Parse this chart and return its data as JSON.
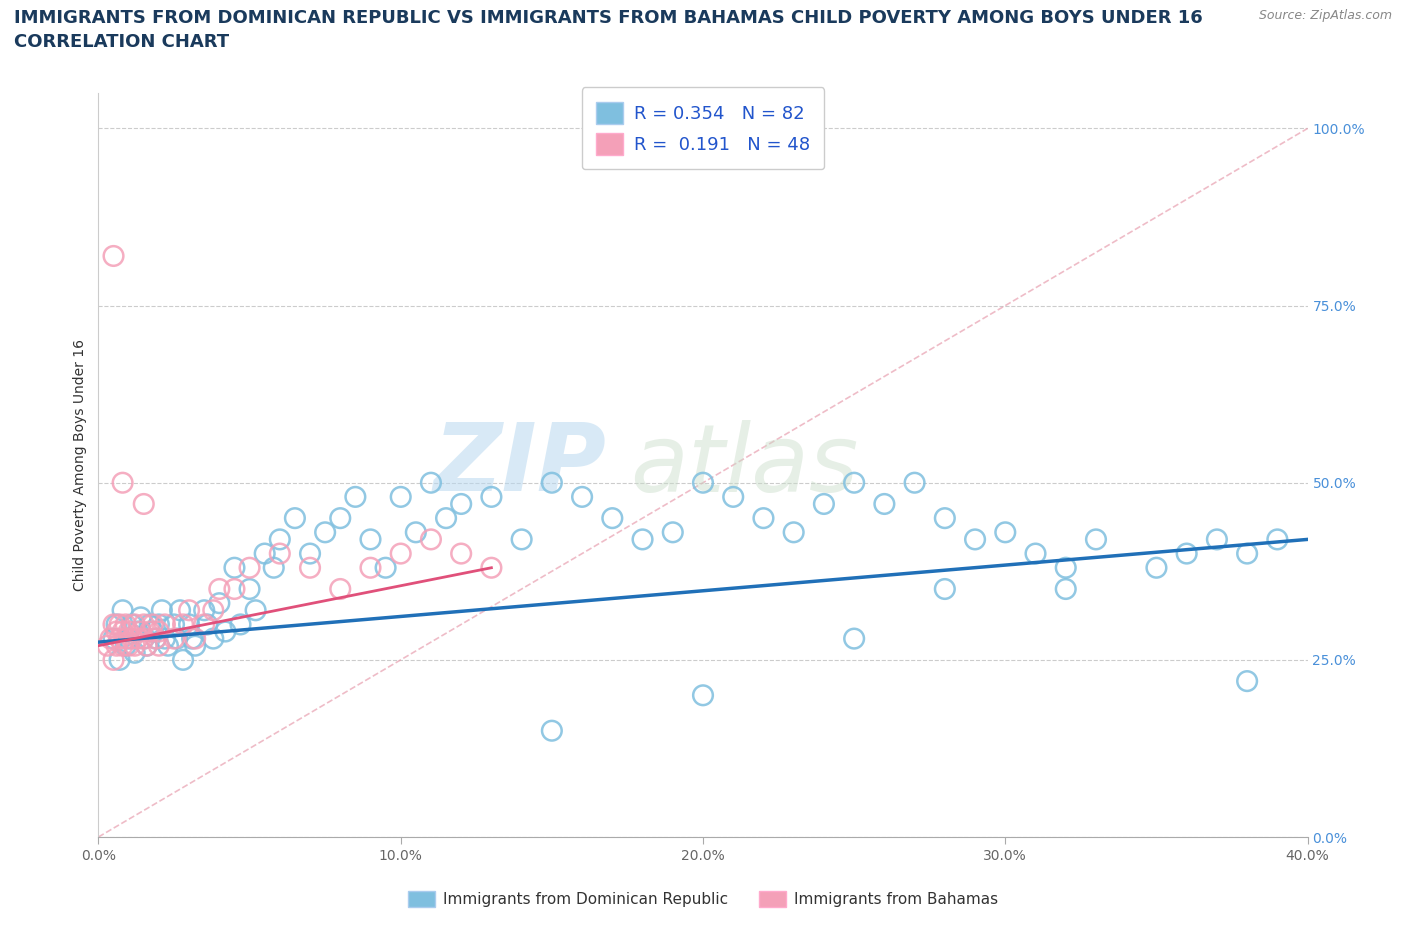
{
  "title_line1": "IMMIGRANTS FROM DOMINICAN REPUBLIC VS IMMIGRANTS FROM BAHAMAS CHILD POVERTY AMONG BOYS UNDER 16",
  "title_line2": "CORRELATION CHART",
  "source_text": "Source: ZipAtlas.com",
  "ylabel": "Child Poverty Among Boys Under 16",
  "xlim": [
    0.0,
    0.4
  ],
  "ylim": [
    0.0,
    1.05
  ],
  "xtick_labels": [
    "0.0%",
    "10.0%",
    "20.0%",
    "30.0%",
    "40.0%"
  ],
  "xtick_vals": [
    0.0,
    0.1,
    0.2,
    0.3,
    0.4
  ],
  "ytick_labels": [
    "0.0%",
    "25.0%",
    "50.0%",
    "75.0%",
    "100.0%"
  ],
  "ytick_vals": [
    0.0,
    0.25,
    0.5,
    0.75,
    1.0
  ],
  "color_blue": "#7fbfdf",
  "color_pink": "#f4a0b8",
  "R_blue": 0.354,
  "N_blue": 82,
  "R_pink": 0.191,
  "N_pink": 48,
  "legend_label_blue": "Immigrants from Dominican Republic",
  "legend_label_pink": "Immigrants from Bahamas",
  "watermark_zip": "ZIP",
  "watermark_atlas": "atlas",
  "title_fontsize": 13,
  "subtitle_fontsize": 13,
  "axis_label_fontsize": 10,
  "tick_fontsize": 10,
  "blue_x": [
    0.005,
    0.006,
    0.007,
    0.008,
    0.009,
    0.01,
    0.011,
    0.012,
    0.013,
    0.014,
    0.015,
    0.016,
    0.017,
    0.018,
    0.019,
    0.02,
    0.021,
    0.022,
    0.023,
    0.025,
    0.026,
    0.027,
    0.028,
    0.03,
    0.031,
    0.032,
    0.035,
    0.036,
    0.038,
    0.04,
    0.042,
    0.045,
    0.047,
    0.05,
    0.052,
    0.055,
    0.058,
    0.06,
    0.065,
    0.07,
    0.075,
    0.08,
    0.085,
    0.09,
    0.095,
    0.1,
    0.105,
    0.11,
    0.115,
    0.12,
    0.13,
    0.14,
    0.15,
    0.16,
    0.17,
    0.18,
    0.19,
    0.2,
    0.21,
    0.22,
    0.23,
    0.24,
    0.25,
    0.26,
    0.27,
    0.28,
    0.29,
    0.3,
    0.31,
    0.32,
    0.33,
    0.35,
    0.36,
    0.37,
    0.38,
    0.39,
    0.28,
    0.32,
    0.25,
    0.38,
    0.2,
    0.15
  ],
  "blue_y": [
    0.28,
    0.3,
    0.25,
    0.32,
    0.27,
    0.28,
    0.3,
    0.26,
    0.29,
    0.31,
    0.28,
    0.27,
    0.3,
    0.29,
    0.28,
    0.3,
    0.32,
    0.28,
    0.27,
    0.3,
    0.28,
    0.32,
    0.25,
    0.3,
    0.28,
    0.27,
    0.32,
    0.3,
    0.28,
    0.33,
    0.29,
    0.38,
    0.3,
    0.35,
    0.32,
    0.4,
    0.38,
    0.42,
    0.45,
    0.4,
    0.43,
    0.45,
    0.48,
    0.42,
    0.38,
    0.48,
    0.43,
    0.5,
    0.45,
    0.47,
    0.48,
    0.42,
    0.5,
    0.48,
    0.45,
    0.42,
    0.43,
    0.5,
    0.48,
    0.45,
    0.43,
    0.47,
    0.5,
    0.47,
    0.5,
    0.45,
    0.42,
    0.43,
    0.4,
    0.38,
    0.42,
    0.38,
    0.4,
    0.42,
    0.4,
    0.42,
    0.35,
    0.35,
    0.28,
    0.22,
    0.2,
    0.15
  ],
  "pink_x": [
    0.003,
    0.004,
    0.005,
    0.005,
    0.006,
    0.006,
    0.007,
    0.007,
    0.008,
    0.008,
    0.009,
    0.009,
    0.01,
    0.01,
    0.011,
    0.012,
    0.012,
    0.013,
    0.014,
    0.015,
    0.015,
    0.016,
    0.017,
    0.018,
    0.019,
    0.02,
    0.02,
    0.022,
    0.025,
    0.028,
    0.03,
    0.032,
    0.035,
    0.038,
    0.04,
    0.045,
    0.05,
    0.06,
    0.07,
    0.08,
    0.09,
    0.1,
    0.11,
    0.12,
    0.13,
    0.005,
    0.008,
    0.015
  ],
  "pink_y": [
    0.27,
    0.28,
    0.25,
    0.3,
    0.27,
    0.29,
    0.28,
    0.3,
    0.27,
    0.29,
    0.28,
    0.3,
    0.27,
    0.29,
    0.28,
    0.3,
    0.27,
    0.28,
    0.29,
    0.28,
    0.3,
    0.27,
    0.29,
    0.3,
    0.28,
    0.27,
    0.29,
    0.3,
    0.28,
    0.3,
    0.32,
    0.28,
    0.3,
    0.32,
    0.35,
    0.35,
    0.38,
    0.4,
    0.38,
    0.35,
    0.38,
    0.4,
    0.42,
    0.4,
    0.38,
    0.82,
    0.5,
    0.47
  ],
  "blue_trend_x": [
    0.0,
    0.4
  ],
  "blue_trend_y": [
    0.275,
    0.42
  ],
  "pink_trend_x": [
    0.0,
    0.13
  ],
  "pink_trend_y": [
    0.27,
    0.38
  ]
}
